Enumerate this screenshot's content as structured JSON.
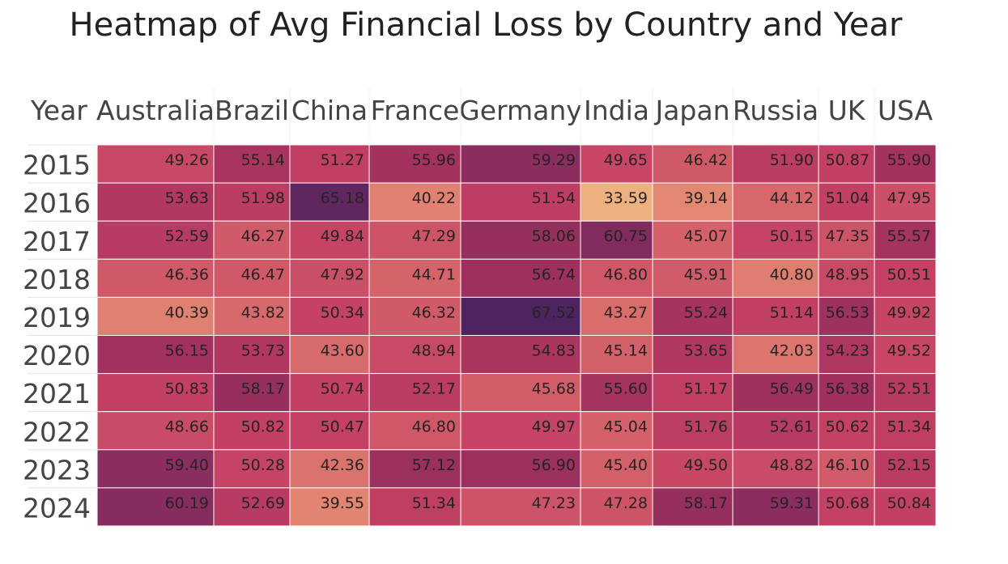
{
  "chart_data": {
    "type": "heatmap",
    "title": "Heatmap of Avg Financial Loss by Country and Year",
    "row_header": "Year",
    "columns": [
      "Australia",
      "Brazil",
      "China",
      "France",
      "Germany",
      "India",
      "Japan",
      "Russia",
      "UK",
      "USA"
    ],
    "rows": [
      "2015",
      "2016",
      "2017",
      "2018",
      "2019",
      "2020",
      "2021",
      "2022",
      "2023",
      "2024"
    ],
    "values": [
      [
        49.26,
        55.14,
        51.27,
        55.96,
        59.29,
        49.65,
        46.42,
        51.9,
        50.87,
        55.9
      ],
      [
        53.63,
        51.98,
        65.18,
        40.22,
        51.54,
        33.59,
        39.14,
        44.12,
        51.04,
        47.95
      ],
      [
        52.59,
        46.27,
        49.84,
        47.29,
        58.06,
        60.75,
        45.07,
        50.15,
        47.35,
        55.57
      ],
      [
        46.36,
        46.47,
        47.92,
        44.71,
        56.74,
        46.8,
        45.91,
        40.8,
        48.95,
        50.51
      ],
      [
        40.39,
        43.82,
        50.34,
        46.32,
        67.52,
        43.27,
        55.24,
        51.14,
        56.53,
        49.92
      ],
      [
        56.15,
        53.73,
        43.6,
        48.94,
        54.83,
        45.14,
        53.65,
        42.03,
        54.23,
        49.52
      ],
      [
        50.83,
        58.17,
        50.74,
        52.17,
        45.68,
        55.6,
        51.17,
        56.49,
        56.38,
        52.51
      ],
      [
        48.66,
        50.82,
        50.47,
        46.8,
        49.97,
        45.04,
        51.76,
        52.61,
        50.62,
        51.34
      ],
      [
        59.4,
        50.28,
        42.36,
        57.12,
        56.9,
        45.4,
        49.5,
        48.82,
        46.1,
        52.15
      ],
      [
        60.19,
        52.69,
        39.55,
        51.34,
        47.23,
        47.28,
        58.17,
        59.31,
        50.68,
        50.84
      ]
    ],
    "value_format": "2 decimals",
    "color_scale": [
      "#edb07f",
      "#e28772",
      "#d4626a",
      "#c44164",
      "#a1315e",
      "#7b2a5f",
      "#4d2360"
    ],
    "color_range": [
      33.59,
      67.52
    ]
  }
}
